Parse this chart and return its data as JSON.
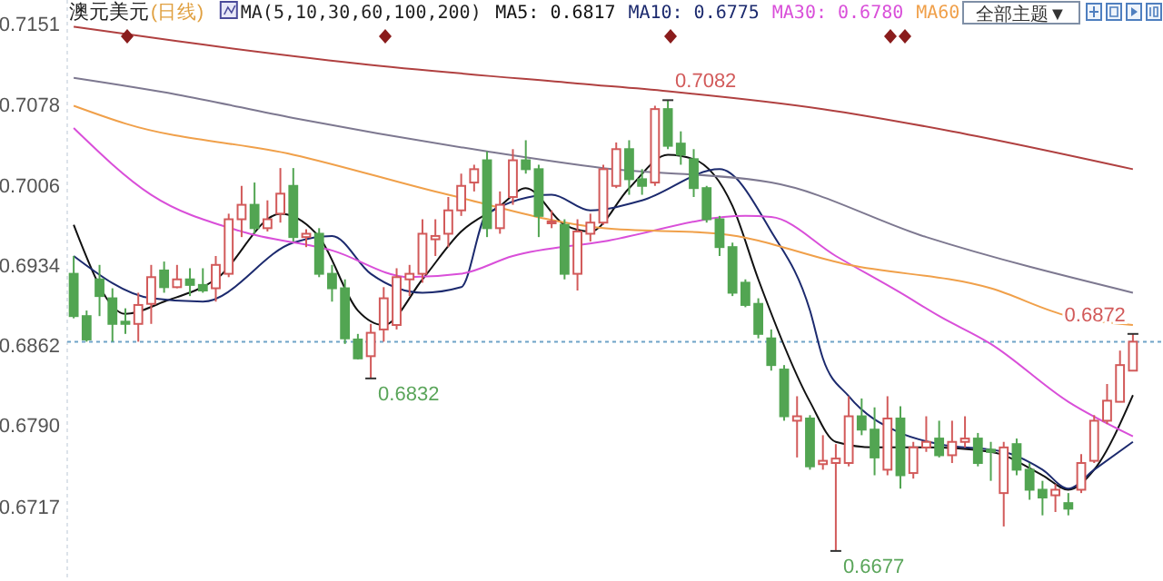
{
  "chart_data": {
    "type": "candlestick",
    "title": "澳元美元",
    "subtitle": "(日线)",
    "legend": "top",
    "colors": [
      "#52a552",
      "#52a552",
      "#52a552",
      "#52a552",
      "#52a552",
      "#d25a5a",
      "#d25a5a",
      "#52a552",
      "#d25a5a",
      "#52a552",
      "#52a552",
      "#d25a5a",
      "#d25a5a",
      "#d25a5a",
      "#52a552",
      "#d25a5a",
      "#d25a5a",
      "#52a552",
      "#d25a5a",
      "#52a552",
      "#52a552",
      "#52a552",
      "#52a552",
      "#d25a5a",
      "#d25a5a",
      "#d25a5a",
      "#d25a5a",
      "#d25a5a",
      "#d25a5a",
      "#d25a5a",
      "#d25a5a",
      "#d25a5a",
      "#52a552",
      "#d25a5a",
      "#d25a5a",
      "#52a552",
      "#52a552",
      "#d25a5a",
      "#52a552",
      "#d25a5a",
      "#d25a5a",
      "#d25a5a",
      "#d25a5a",
      "#52a552",
      "#52a552",
      "#d25a5a",
      "#52a552",
      "#52a552",
      "#52a552",
      "#52a552",
      "#52a552",
      "#52a552",
      "#52a552",
      "#52a552",
      "#52a552",
      "#52a552",
      "#d25a5a",
      "#52a552",
      "#d25a5a",
      "#d25a5a",
      "#d25a5a",
      "#52a552",
      "#52a552",
      "#d25a5a",
      "#52a552",
      "#d25a5a",
      "#d25a5a",
      "#52a552",
      "#d25a5a",
      "#d25a5a",
      "#52a552",
      "#52a552",
      "#d25a5a",
      "#52a552",
      "#52a552",
      "#52a552",
      "#d25a5a",
      "#52a552",
      "#d25a5a",
      "#d25a5a",
      "#d25a5a",
      "#d25a5a",
      "#d25a5a"
    ],
    "annotations": [
      "MA(5,10,30,60,100,200)",
      "全部主题▼",
      {
        "text": "0.7082",
        "y": 0.7082
      },
      "0.6832",
      "0.6677",
      {
        "text": "0.6872",
        "y": 0.6872
      }
    ],
    "categories": [
      null,
      null,
      null,
      null,
      null,
      null,
      null,
      null,
      null,
      null,
      null,
      null,
      null,
      null,
      null,
      null,
      null,
      null,
      null,
      null,
      null,
      null,
      null,
      null,
      null,
      null,
      null,
      null,
      null,
      null,
      null,
      null,
      null,
      null,
      null,
      null,
      null,
      null,
      null,
      null,
      null,
      null,
      null,
      null,
      null,
      null,
      null,
      null,
      null,
      null,
      null,
      null,
      null,
      null,
      null,
      null,
      null,
      null,
      null,
      null,
      null,
      null,
      null,
      null,
      null,
      null,
      null,
      null,
      null,
      null,
      null,
      null,
      null,
      null,
      null,
      null,
      null,
      null,
      null,
      null,
      null,
      null,
      null
    ],
    "ohlc": [
      [
        0.6926,
        0.6942,
        0.6886,
        0.6888
      ],
      [
        0.6888,
        0.6893,
        0.6865,
        0.6867
      ],
      [
        0.6921,
        0.6934,
        0.6888,
        0.6906
      ],
      [
        0.6904,
        0.6913,
        0.6865,
        0.6881
      ],
      [
        0.6883,
        0.6895,
        0.6872,
        0.6881
      ],
      [
        0.6881,
        0.6909,
        0.6865,
        0.6898
      ],
      [
        0.6899,
        0.6934,
        0.6881,
        0.6923
      ],
      [
        0.6929,
        0.6937,
        0.6909,
        0.6914
      ],
      [
        0.6914,
        0.6934,
        0.6913,
        0.6921
      ],
      [
        0.6921,
        0.6931,
        0.6906,
        0.6916
      ],
      [
        0.6916,
        0.6931,
        0.6909,
        0.6911
      ],
      [
        0.6913,
        0.6942,
        0.6901,
        0.6934
      ],
      [
        0.6926,
        0.698,
        0.6923,
        0.6975
      ],
      [
        0.6975,
        0.7005,
        0.6959,
        0.6988
      ],
      [
        0.6988,
        0.7008,
        0.6962,
        0.6967
      ],
      [
        0.6967,
        0.6992,
        0.6964,
        0.6975
      ],
      [
        0.698,
        0.7021,
        0.6972,
        0.6998
      ],
      [
        0.7005,
        0.7021,
        0.6955,
        0.6959
      ],
      [
        0.6959,
        0.6966,
        0.695,
        0.6962
      ],
      [
        0.6962,
        0.6967,
        0.6923,
        0.6926
      ],
      [
        0.6926,
        0.6934,
        0.6901,
        0.6913
      ],
      [
        0.6913,
        0.6921,
        0.6863,
        0.6868
      ],
      [
        0.6867,
        0.6872,
        0.6849,
        0.685
      ],
      [
        0.6852,
        0.6881,
        0.6832,
        0.6873
      ],
      [
        0.6876,
        0.6914,
        0.6865,
        0.6904
      ],
      [
        0.688,
        0.6931,
        0.6876,
        0.6923
      ],
      [
        0.6921,
        0.6934,
        0.6906,
        0.6926
      ],
      [
        0.6926,
        0.6975,
        0.6918,
        0.6962
      ],
      [
        0.6957,
        0.6975,
        0.6942,
        0.696
      ],
      [
        0.6962,
        0.6995,
        0.695,
        0.6983
      ],
      [
        0.6983,
        0.7016,
        0.6978,
        0.7005
      ],
      [
        0.7008,
        0.7024,
        0.7,
        0.702
      ],
      [
        0.7028,
        0.7036,
        0.6959,
        0.6967
      ],
      [
        0.6967,
        0.7,
        0.6962,
        0.6988
      ],
      [
        0.6995,
        0.7038,
        0.6988,
        0.7028
      ],
      [
        0.7028,
        0.7046,
        0.7016,
        0.702
      ],
      [
        0.702,
        0.7024,
        0.6959,
        0.6978
      ],
      [
        0.6972,
        0.6983,
        0.6967,
        0.6973
      ],
      [
        0.697,
        0.6975,
        0.6921,
        0.6926
      ],
      [
        0.6926,
        0.6975,
        0.6911,
        0.6964
      ],
      [
        0.6962,
        0.698,
        0.6955,
        0.6972
      ],
      [
        0.6972,
        0.7024,
        0.697,
        0.702
      ],
      [
        0.7005,
        0.7044,
        0.7003,
        0.7038
      ],
      [
        0.7038,
        0.7046,
        0.6997,
        0.7011
      ],
      [
        0.7011,
        0.702,
        0.6997,
        0.7005
      ],
      [
        0.7008,
        0.7077,
        0.7005,
        0.7074
      ],
      [
        0.7074,
        0.7082,
        0.7038,
        0.7041
      ],
      [
        0.7043,
        0.7054,
        0.7024,
        0.7033
      ],
      [
        0.7029,
        0.7038,
        0.6995,
        0.7003
      ],
      [
        0.7003,
        0.7005,
        0.6972,
        0.6975
      ],
      [
        0.6975,
        0.6978,
        0.6942,
        0.695
      ],
      [
        0.695,
        0.6954,
        0.6906,
        0.6909
      ],
      [
        0.6918,
        0.6921,
        0.6896,
        0.6898
      ],
      [
        0.6899,
        0.6904,
        0.6868,
        0.6872
      ],
      [
        0.6868,
        0.6876,
        0.6839,
        0.6844
      ],
      [
        0.684,
        0.6844,
        0.6794,
        0.6798
      ],
      [
        0.6794,
        0.6816,
        0.6761,
        0.6798
      ],
      [
        0.6796,
        0.6799,
        0.675,
        0.6753
      ],
      [
        0.6755,
        0.6781,
        0.675,
        0.6758
      ],
      [
        0.6756,
        0.6773,
        0.6677,
        0.676
      ],
      [
        0.6756,
        0.6816,
        0.6753,
        0.6798
      ],
      [
        0.6798,
        0.6814,
        0.6781,
        0.6786
      ],
      [
        0.6786,
        0.6806,
        0.6745,
        0.6761
      ],
      [
        0.675,
        0.6816,
        0.6745,
        0.6796
      ],
      [
        0.6796,
        0.6807,
        0.6733,
        0.6745
      ],
      [
        0.6747,
        0.6775,
        0.6742,
        0.677
      ],
      [
        0.677,
        0.6798,
        0.6766,
        0.6775
      ],
      [
        0.6778,
        0.6794,
        0.6761,
        0.6763
      ],
      [
        0.6763,
        0.6794,
        0.6756,
        0.6775
      ],
      [
        0.6775,
        0.6798,
        0.677,
        0.6778
      ],
      [
        0.6778,
        0.6783,
        0.6753,
        0.6756
      ],
      [
        0.6768,
        0.6775,
        0.674,
        0.6766
      ],
      [
        0.6729,
        0.6775,
        0.6699,
        0.677
      ],
      [
        0.6773,
        0.6778,
        0.6745,
        0.675
      ],
      [
        0.675,
        0.6756,
        0.6723,
        0.6732
      ],
      [
        0.6732,
        0.674,
        0.6709,
        0.6725
      ],
      [
        0.6727,
        0.6737,
        0.6712,
        0.6732
      ],
      [
        0.672,
        0.6729,
        0.6709,
        0.6715
      ],
      [
        0.6732,
        0.6764,
        0.6729,
        0.6756
      ],
      [
        0.6758,
        0.6799,
        0.6756,
        0.6794
      ],
      [
        0.6794,
        0.6827,
        0.6791,
        0.6812
      ],
      [
        0.6811,
        0.6857,
        0.6811,
        0.6844
      ],
      [
        0.6839,
        0.6872,
        0.6839,
        0.6865
      ]
    ],
    "series": [
      {
        "type": "line",
        "name": "MA5: 0.6817",
        "color": "#111111",
        "values": [
          0.697,
          null,
          null,
          null,
          0.689,
          null,
          null,
          0.6901,
          null,
          null,
          null,
          0.6921,
          null,
          null,
          null,
          null,
          0.698,
          null,
          null,
          0.6959,
          null,
          null,
          0.6893,
          null,
          0.688,
          null,
          null,
          0.6921,
          null,
          null,
          0.6964,
          null,
          null,
          0.6987,
          null,
          0.7003,
          null,
          null,
          0.697,
          null,
          0.6964,
          null,
          null,
          0.7003,
          null,
          null,
          0.7033,
          null,
          0.7029,
          null,
          null,
          0.6987,
          null,
          0.6921,
          null,
          null,
          null,
          0.6811,
          null,
          0.6775,
          null,
          null,
          0.677,
          null,
          null,
          null,
          0.677,
          null,
          null,
          null,
          null,
          0.6766,
          null,
          null,
          null,
          0.6745,
          null,
          0.6732,
          null,
          0.675,
          null,
          null,
          0.6817
        ]
      },
      {
        "type": "line",
        "name": "MA10: 0.6775",
        "color": "#1c2a6e",
        "values": [
          0.6942,
          null,
          null,
          null,
          null,
          null,
          0.6904,
          null,
          null,
          null,
          0.6901,
          null,
          null,
          null,
          null,
          null,
          null,
          0.6954,
          null,
          null,
          0.696,
          null,
          null,
          0.6926,
          null,
          null,
          null,
          0.6909,
          null,
          null,
          0.6914,
          null,
          0.698,
          null,
          null,
          null,
          null,
          0.6997,
          null,
          null,
          0.6983,
          null,
          null,
          null,
          0.6992,
          null,
          null,
          null,
          null,
          null,
          0.702,
          null,
          null,
          null,
          0.6964,
          null,
          null,
          0.6893,
          0.685,
          null,
          0.6816,
          null,
          null,
          null,
          0.6783,
          null,
          null,
          0.6773,
          null,
          null,
          null,
          null,
          0.6766,
          null,
          null,
          0.675,
          null,
          0.6733,
          null,
          0.675,
          null,
          null,
          0.6775
        ]
      },
      {
        "type": "line",
        "name": "MA30: 0.6780",
        "color": "#d94fd9",
        "values": [
          0.7057,
          null,
          null,
          null,
          null,
          null,
          0.6997,
          null,
          null,
          null,
          null,
          null,
          null,
          0.6964,
          null,
          null,
          null,
          null,
          null,
          null,
          0.6947,
          null,
          null,
          null,
          null,
          null,
          0.6923,
          null,
          null,
          null,
          0.6926,
          null,
          null,
          null,
          0.6942,
          null,
          null,
          null,
          null,
          null,
          null,
          0.6955,
          null,
          null,
          null,
          null,
          null,
          null,
          null,
          null,
          null,
          null,
          0.6978,
          null,
          0.6977,
          null,
          null,
          null,
          null,
          0.6942,
          null,
          null,
          null,
          null,
          0.6909,
          null,
          null,
          0.6888,
          null,
          null,
          null,
          0.6863,
          null,
          null,
          null,
          null,
          null,
          0.6811,
          null,
          null,
          null,
          null,
          0.678
        ]
      },
      {
        "type": "line",
        "name": "MA60",
        "color": "#f0a04a",
        "values": [
          0.7077,
          null,
          null,
          null,
          0.7061,
          null,
          null,
          null,
          null,
          null,
          null,
          null,
          null,
          null,
          null,
          null,
          null,
          0.7033,
          null,
          null,
          null,
          null,
          null,
          null,
          null,
          null,
          null,
          null,
          null,
          0.6997,
          null,
          null,
          null,
          null,
          null,
          null,
          null,
          null,
          null,
          null,
          null,
          0.6967,
          null,
          null,
          null,
          null,
          null,
          null,
          null,
          null,
          0.6962,
          null,
          null,
          null,
          null,
          null,
          null,
          null,
          null,
          null,
          0.6934,
          null,
          null,
          null,
          null,
          null,
          null,
          null,
          null,
          null,
          null,
          0.6913,
          null,
          null,
          null,
          null,
          null,
          0.6888,
          null,
          null,
          null,
          null,
          0.688
        ]
      },
      {
        "type": "line",
        "color": "#7d7890",
        "values": [
          0.7102,
          null,
          null,
          null,
          null,
          null,
          null,
          null,
          0.7087,
          null,
          null,
          null,
          null,
          null,
          null,
          null,
          null,
          0.7066,
          null,
          null,
          null,
          null,
          null,
          null,
          null,
          null,
          null,
          null,
          null,
          null,
          null,
          null,
          0.7036,
          null,
          null,
          null,
          null,
          null,
          null,
          null,
          null,
          0.7021,
          null,
          null,
          null,
          null,
          null,
          null,
          null,
          null,
          null,
          null,
          null,
          null,
          0.7008,
          null,
          null,
          null,
          null,
          null,
          null,
          null,
          null,
          null,
          null,
          null,
          0.6959,
          null,
          null,
          null,
          null,
          null,
          null,
          null,
          null,
          null,
          null,
          null,
          null,
          null,
          null,
          null,
          0.6909
        ]
      },
      {
        "type": "line",
        "color": "#b04040",
        "values": [
          0.7148,
          null,
          null,
          null,
          null,
          null,
          null,
          null,
          0.7135,
          null,
          null,
          null,
          null,
          null,
          null,
          null,
          null,
          null,
          null,
          null,
          null,
          null,
          0.7115,
          null,
          null,
          null,
          null,
          null,
          null,
          null,
          null,
          null,
          null,
          null,
          null,
          null,
          null,
          null,
          null,
          0.7097,
          null,
          null,
          null,
          null,
          null,
          null,
          0.709,
          null,
          null,
          null,
          null,
          null,
          null,
          null,
          null,
          null,
          null,
          null,
          0.7074,
          null,
          null,
          null,
          null,
          null,
          null,
          null,
          null,
          null,
          0.7054,
          null,
          null,
          null,
          null,
          null,
          null,
          null,
          null,
          null,
          null,
          null,
          null,
          null,
          0.702
        ]
      }
    ],
    "ylim": [
      0.665,
      0.7172
    ],
    "yticks": [
      {
        "value": 0.7151,
        "label": "0.7151"
      },
      {
        "value": 0.7078,
        "label": "0.7078"
      },
      {
        "value": 0.7006,
        "label": "0.7006"
      },
      {
        "value": 0.6934,
        "label": "0.6934"
      },
      {
        "value": 0.6862,
        "label": "0.6862"
      },
      {
        "value": 0.679,
        "label": "0.6790"
      },
      {
        "value": 0.6717,
        "label": "0.6717"
      }
    ],
    "ref_lines": [
      {
        "axis": "y",
        "value": 0.6865,
        "color": "#6fa3c8",
        "line_style": "dotted"
      }
    ]
  }
}
